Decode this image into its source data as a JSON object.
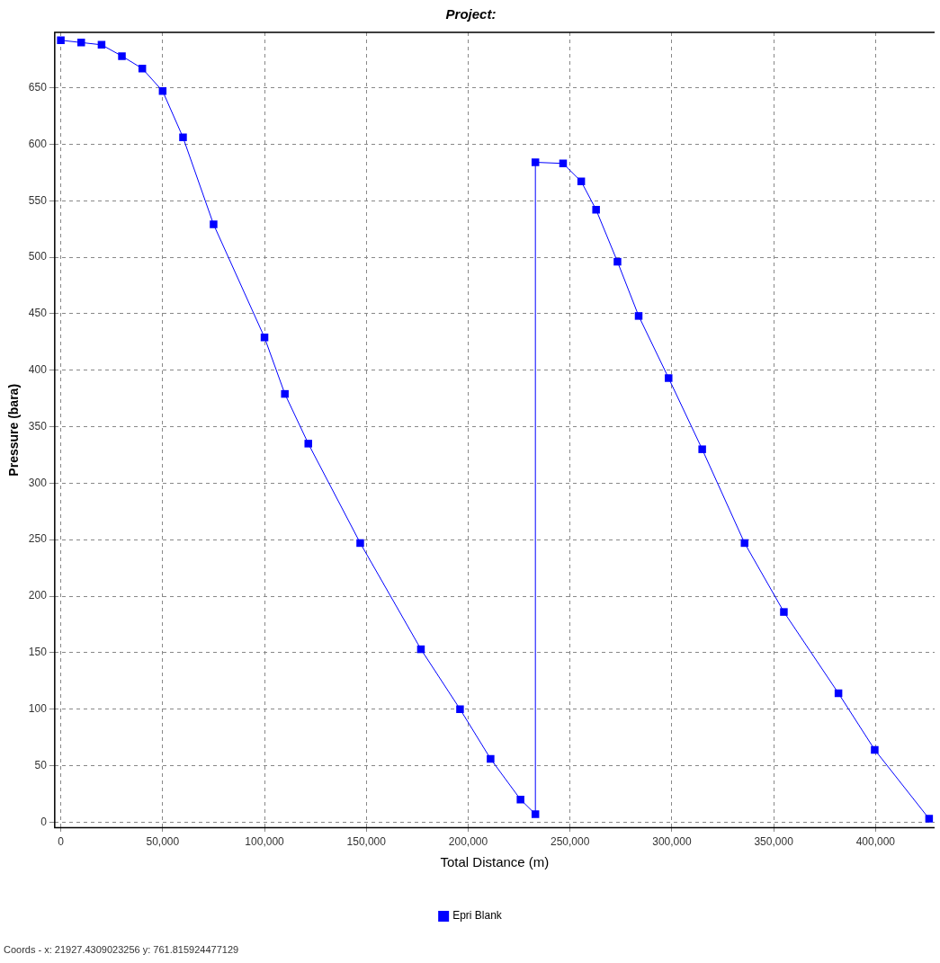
{
  "chart_data": {
    "type": "line",
    "title": "Project:",
    "xlabel": "Total Distance (m)",
    "ylabel": "Pressure (bara)",
    "xlim": [
      -3000,
      429000
    ],
    "ylim": [
      -5,
      699
    ],
    "xticks": [
      0,
      {
        "value": 50000,
        "label": "50,000"
      },
      {
        "value": 100000,
        "label": "100,000"
      },
      {
        "value": 150000,
        "label": "150,000"
      },
      {
        "value": 200000,
        "label": "200,000"
      },
      {
        "value": 250000,
        "label": "250,000"
      },
      {
        "value": 300000,
        "label": "300,000"
      },
      {
        "value": 350000,
        "label": "350,000"
      },
      {
        "value": 400000,
        "label": "400,000"
      }
    ],
    "yticks": [
      0,
      50,
      100,
      150,
      200,
      250,
      300,
      350,
      400,
      450,
      500,
      550,
      600,
      650
    ],
    "grid": true,
    "legend": "bottom",
    "marker": "square",
    "line_style": "solid",
    "series": [
      {
        "name": "Epri Blank",
        "color": "#0000ff",
        "x": [
          0,
          10000,
          20000,
          30000,
          40000,
          50000,
          60000,
          75000,
          100000,
          110000,
          121500,
          147000,
          176800,
          196000,
          211000,
          225700,
          233000,
          233000,
          246600,
          255500,
          262800,
          273300,
          283700,
          298400,
          314900,
          335700,
          355000,
          381800,
          399600,
          426300
        ],
        "values": [
          692,
          690,
          688,
          678,
          667,
          647,
          606,
          529,
          429,
          379,
          335,
          247,
          153,
          100,
          56,
          20,
          7,
          584,
          583,
          567,
          542,
          496,
          448,
          393,
          330,
          247,
          186,
          114,
          64,
          3
        ]
      }
    ],
    "annotations": [
      "Coords - x: 21927.4309023256  y: 761.815924477129"
    ]
  }
}
